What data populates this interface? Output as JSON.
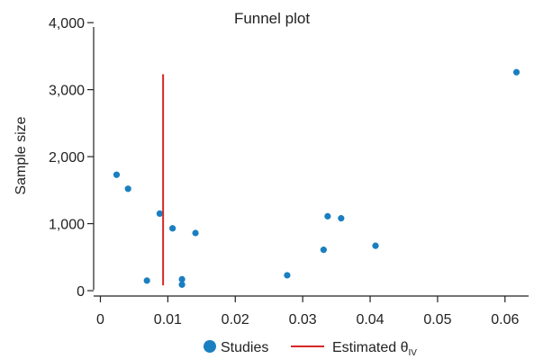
{
  "chart_data": {
    "type": "scatter",
    "title": "Funnel plot",
    "xlabel": "",
    "ylabel": "Sample size",
    "xlim": [
      -0.001,
      0.0635
    ],
    "ylim": [
      -80,
      4150
    ],
    "x_ticks": [
      {
        "value": 0,
        "label": "0"
      },
      {
        "value": 0.01,
        "label": "0.01"
      },
      {
        "value": 0.02,
        "label": "0.02"
      },
      {
        "value": 0.03,
        "label": "0.03"
      },
      {
        "value": 0.04,
        "label": "0.04"
      },
      {
        "value": 0.05,
        "label": "0.05"
      },
      {
        "value": 0.06,
        "label": "0.06"
      }
    ],
    "y_ticks": [
      {
        "value": 0,
        "label": "0"
      },
      {
        "value": 1000,
        "label": "1,000"
      },
      {
        "value": 2000,
        "label": "2,000"
      },
      {
        "value": 3000,
        "label": "3,000"
      },
      {
        "value": 4000,
        "label": "4,000"
      }
    ],
    "grid": false,
    "legend_position": "bottom",
    "series": [
      {
        "name": "Studies",
        "type": "scatter",
        "color": "#1a7fc0",
        "points": [
          {
            "x": 0.0024,
            "y": 1730
          },
          {
            "x": 0.0041,
            "y": 1520
          },
          {
            "x": 0.0069,
            "y": 150
          },
          {
            "x": 0.0088,
            "y": 1150
          },
          {
            "x": 0.0107,
            "y": 930
          },
          {
            "x": 0.0121,
            "y": 170
          },
          {
            "x": 0.0121,
            "y": 90
          },
          {
            "x": 0.0141,
            "y": 860
          },
          {
            "x": 0.0277,
            "y": 230
          },
          {
            "x": 0.0331,
            "y": 610
          },
          {
            "x": 0.0337,
            "y": 1110
          },
          {
            "x": 0.0357,
            "y": 1080
          },
          {
            "x": 0.0408,
            "y": 670
          },
          {
            "x": 0.0617,
            "y": 3260
          }
        ]
      },
      {
        "name": "Estimated θIV",
        "type": "vline",
        "color": "#d62728",
        "x": 0.0093,
        "y_from": 80,
        "y_to": 3230
      }
    ]
  },
  "legend": {
    "studies_label": "Studies",
    "estimate_label": "Estimated θ",
    "estimate_subscript": "IV"
  }
}
